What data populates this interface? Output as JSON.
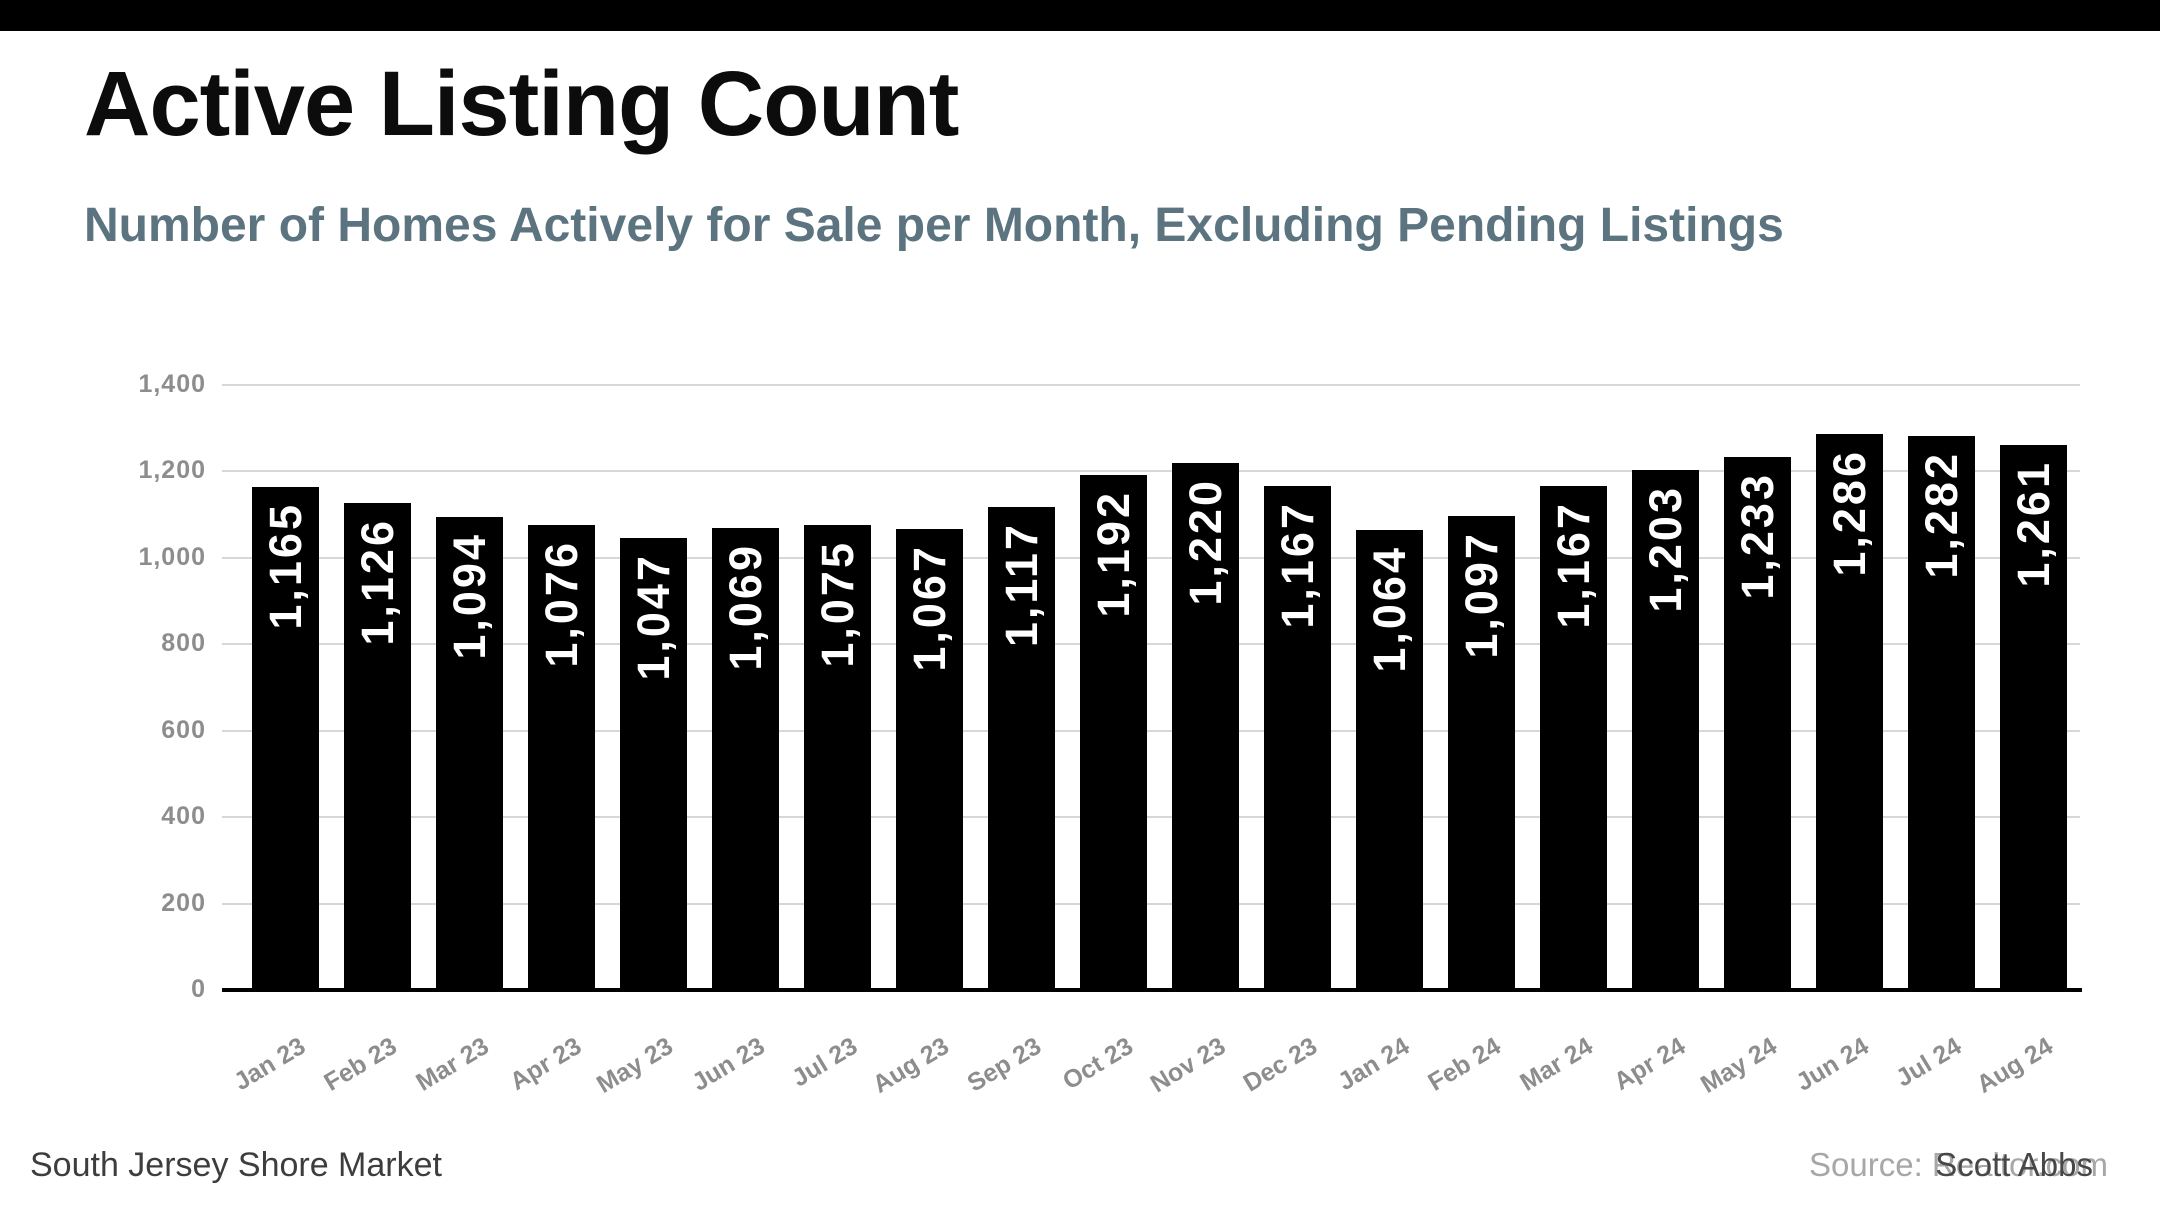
{
  "page": {
    "title": "Active Listing Count",
    "subtitle": "Number of Homes Actively for Sale per Month, Excluding Pending Listings",
    "footer_left": "South Jersey Shore Market",
    "source_text": "Source: Realtor.com",
    "watermark_text": "Scott Abbs"
  },
  "colors": {
    "top_bar": "#000000",
    "title": "#0c0c0c",
    "subtitle": "#5b7480",
    "bar_fill": "#000000",
    "bar_value_label": "#ffffff",
    "gridline": "#d7d7d7",
    "axis_tick_label": "#8d8d8d",
    "baseline": "#000000",
    "footer_left": "#3d3d3d",
    "source_text": "#a7a7a7",
    "watermark_text": "#474747"
  },
  "chart_data": {
    "type": "bar",
    "title": "Active Listing Count",
    "subtitle": "Number of Homes Actively for Sale per Month, Excluding Pending Listings",
    "xlabel": "",
    "ylabel": "",
    "categories": [
      "Jan 23",
      "Feb 23",
      "Mar 23",
      "Apr 23",
      "May 23",
      "Jun 23",
      "Jul 23",
      "Aug 23",
      "Sep 23",
      "Oct 23",
      "Nov 23",
      "Dec 23",
      "Jan 24",
      "Feb 24",
      "Mar 24",
      "Apr 24",
      "May 24",
      "Jun 24",
      "Jul 24",
      "Aug 24"
    ],
    "values": [
      1165,
      1126,
      1094,
      1076,
      1047,
      1069,
      1075,
      1067,
      1117,
      1192,
      1220,
      1167,
      1064,
      1097,
      1167,
      1203,
      1233,
      1286,
      1282,
      1261
    ],
    "value_labels": [
      "1,165",
      "1,126",
      "1,094",
      "1,076",
      "1,047",
      "1,069",
      "1,075",
      "1,067",
      "1,117",
      "1,192",
      "1,220",
      "1,167",
      "1,064",
      "1,097",
      "1,167",
      "1,203",
      "1,233",
      "1,286",
      "1,282",
      "1,261"
    ],
    "ylim": [
      0,
      1400
    ],
    "ytick_interval": 200,
    "ytick_labels": [
      "0",
      "200",
      "400",
      "600",
      "800",
      "1,000",
      "1,200",
      "1,400"
    ],
    "grid": true,
    "legend": false,
    "bar_label_rotation": "vertical-bottom-to-top",
    "xtick_rotation_deg": -31
  }
}
